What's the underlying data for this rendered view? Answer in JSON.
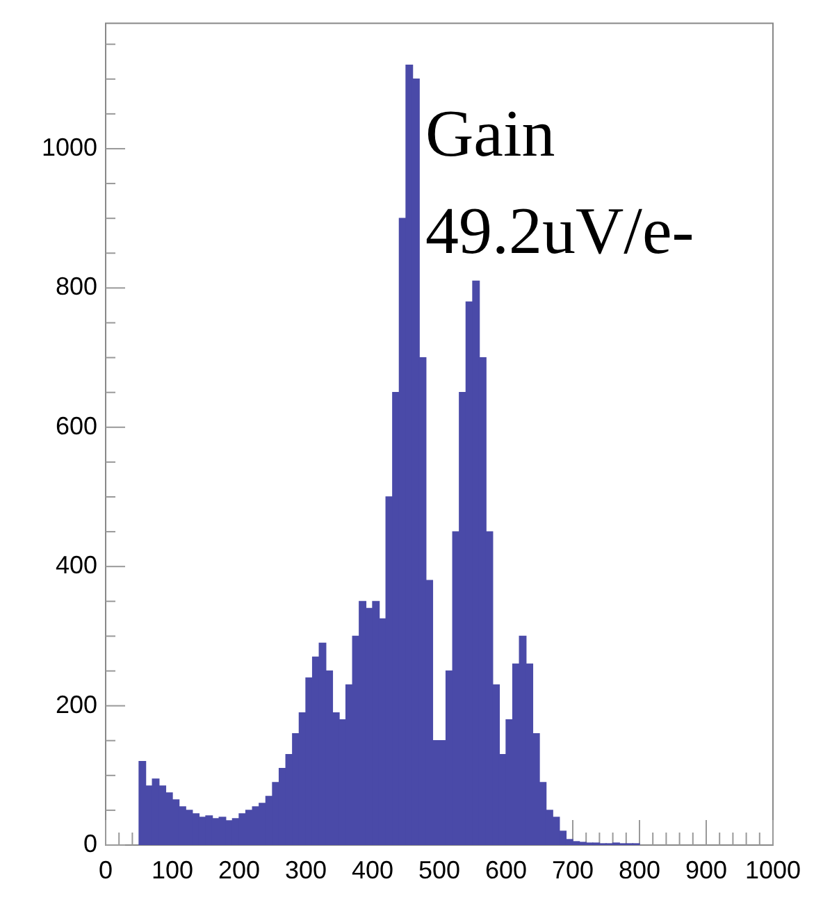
{
  "chart_data": {
    "type": "histogram",
    "color": "#4a4aa8",
    "bins": [
      50,
      60,
      70,
      80,
      90,
      100,
      110,
      120,
      130,
      140,
      150,
      160,
      170,
      180,
      190,
      200,
      210,
      220,
      230,
      240,
      250,
      260,
      270,
      280,
      290,
      300,
      310,
      320,
      330,
      340,
      350,
      360,
      370,
      380,
      390,
      400,
      410,
      420,
      430,
      440,
      450,
      460,
      470,
      480,
      490,
      500,
      510,
      520,
      530,
      540,
      550,
      560,
      570,
      580,
      590,
      600,
      610,
      620,
      630,
      640,
      650,
      660,
      670,
      680,
      690,
      700,
      710,
      720,
      730,
      740,
      750,
      760,
      770,
      780,
      790,
      800
    ],
    "values": [
      120,
      85,
      95,
      85,
      75,
      65,
      55,
      50,
      45,
      40,
      42,
      38,
      40,
      35,
      38,
      45,
      50,
      55,
      60,
      70,
      90,
      110,
      130,
      160,
      190,
      240,
      270,
      290,
      250,
      190,
      180,
      230,
      300,
      350,
      340,
      350,
      325,
      500,
      650,
      900,
      1120,
      1100,
      700,
      380,
      150,
      150,
      250,
      450,
      650,
      780,
      810,
      700,
      450,
      230,
      130,
      180,
      260,
      300,
      260,
      160,
      90,
      50,
      40,
      20,
      8,
      5,
      4,
      3,
      3,
      2,
      2,
      3,
      2,
      2,
      2
    ],
    "xlim": [
      0,
      1000
    ],
    "xticks": [
      0,
      100,
      200,
      300,
      400,
      500,
      600,
      700,
      800,
      900,
      1000
    ],
    "ylim": [
      0,
      1180
    ],
    "yticks": [
      0,
      200,
      400,
      600,
      800,
      1000
    ],
    "grid": false,
    "annotations": [
      "Gain",
      "49.2uV/e-"
    ]
  }
}
